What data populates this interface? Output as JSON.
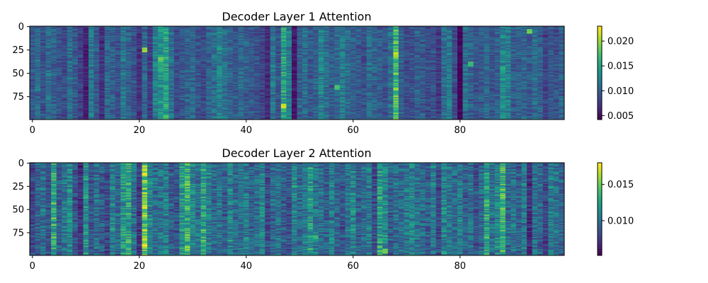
{
  "chart_data": [
    {
      "type": "heatmap",
      "title": "Decoder Layer 1 Attention",
      "xlabel": "",
      "ylabel": "",
      "n_rows": 100,
      "n_cols": 100,
      "colormap": "viridis",
      "x_ticks": [
        "0",
        "20",
        "40",
        "60",
        "80"
      ],
      "y_ticks": [
        "0",
        "25",
        "50",
        "75"
      ],
      "colorbar": {
        "min": 0.0042,
        "max": 0.023,
        "ticks": [
          "0.005",
          "0.010",
          "0.015",
          "0.020"
        ],
        "tick_values": [
          0.005,
          0.01,
          0.015,
          0.02
        ]
      },
      "column_profile": [
        0.0095,
        0.0105,
        0.009,
        0.011,
        0.01,
        0.009,
        0.0085,
        0.011,
        0.0095,
        0.008,
        0.006,
        0.012,
        0.0095,
        0.007,
        0.0105,
        0.01,
        0.009,
        0.0115,
        0.01,
        0.009,
        0.007,
        0.0105,
        0.0075,
        0.0125,
        0.014,
        0.015,
        0.011,
        0.0085,
        0.0095,
        0.01,
        0.0105,
        0.009,
        0.0085,
        0.01,
        0.011,
        0.0125,
        0.011,
        0.01,
        0.0095,
        0.0105,
        0.01,
        0.0095,
        0.009,
        0.008,
        0.0065,
        0.0115,
        0.009,
        0.015,
        0.0125,
        0.0055,
        0.01,
        0.011,
        0.0095,
        0.01,
        0.0125,
        0.011,
        0.0095,
        0.0105,
        0.012,
        0.011,
        0.01,
        0.0095,
        0.009,
        0.011,
        0.01,
        0.0095,
        0.009,
        0.011,
        0.017,
        0.01,
        0.0085,
        0.009,
        0.01,
        0.0095,
        0.0085,
        0.009,
        0.0075,
        0.011,
        0.012,
        0.0085,
        0.0045,
        0.011,
        0.01,
        0.009,
        0.0095,
        0.0105,
        0.009,
        0.01,
        0.013,
        0.012,
        0.0095,
        0.01,
        0.0105,
        0.0095,
        0.011,
        0.01,
        0.008,
        0.0095,
        0.009,
        0.01
      ],
      "highlights": [
        [
          21,
          25,
          0.021
        ],
        [
          68,
          30,
          0.022
        ],
        [
          47,
          85,
          0.023
        ],
        [
          24,
          35,
          0.02
        ],
        [
          82,
          40,
          0.018
        ],
        [
          57,
          65,
          0.019
        ],
        [
          88,
          45,
          0.017
        ],
        [
          93,
          5,
          0.02
        ]
      ]
    },
    {
      "type": "heatmap",
      "title": "Decoder Layer 2 Attention",
      "xlabel": "",
      "ylabel": "",
      "n_rows": 100,
      "n_cols": 100,
      "colormap": "viridis",
      "x_ticks": [
        "0",
        "20",
        "40",
        "60",
        "80"
      ],
      "y_ticks": [
        "0",
        "25",
        "50",
        "75"
      ],
      "colorbar": {
        "min": 0.0052,
        "max": 0.018,
        "ticks": [
          "0.010",
          "0.015"
        ],
        "tick_values": [
          0.01,
          0.015
        ]
      },
      "column_profile": [
        0.008,
        0.0095,
        0.01,
        0.0085,
        0.013,
        0.009,
        0.01,
        0.011,
        0.0085,
        0.007,
        0.0115,
        0.0085,
        0.01,
        0.009,
        0.008,
        0.011,
        0.0095,
        0.012,
        0.0125,
        0.01,
        0.0075,
        0.015,
        0.011,
        0.0095,
        0.01,
        0.0105,
        0.009,
        0.0085,
        0.012,
        0.0135,
        0.011,
        0.01,
        0.0125,
        0.0105,
        0.0095,
        0.01,
        0.009,
        0.011,
        0.0095,
        0.01,
        0.0105,
        0.009,
        0.01,
        0.011,
        0.008,
        0.0095,
        0.01,
        0.009,
        0.0085,
        0.011,
        0.0095,
        0.01,
        0.012,
        0.0105,
        0.01,
        0.009,
        0.0105,
        0.0095,
        0.0085,
        0.01,
        0.011,
        0.009,
        0.0095,
        0.0105,
        0.008,
        0.0125,
        0.011,
        0.009,
        0.01,
        0.0095,
        0.0105,
        0.011,
        0.01,
        0.0095,
        0.009,
        0.0105,
        0.008,
        0.011,
        0.01,
        0.0095,
        0.0105,
        0.009,
        0.01,
        0.0085,
        0.0095,
        0.0125,
        0.01,
        0.011,
        0.0135,
        0.0095,
        0.01,
        0.009,
        0.0105,
        0.007,
        0.01,
        0.0095,
        0.008,
        0.0105,
        0.01,
        0.0095
      ],
      "highlights": [
        [
          21,
          5,
          0.017
        ],
        [
          21,
          40,
          0.016
        ],
        [
          21,
          90,
          0.017
        ],
        [
          17,
          70,
          0.014
        ],
        [
          88,
          50,
          0.015
        ],
        [
          66,
          95,
          0.016
        ],
        [
          53,
          80,
          0.014
        ]
      ]
    }
  ]
}
